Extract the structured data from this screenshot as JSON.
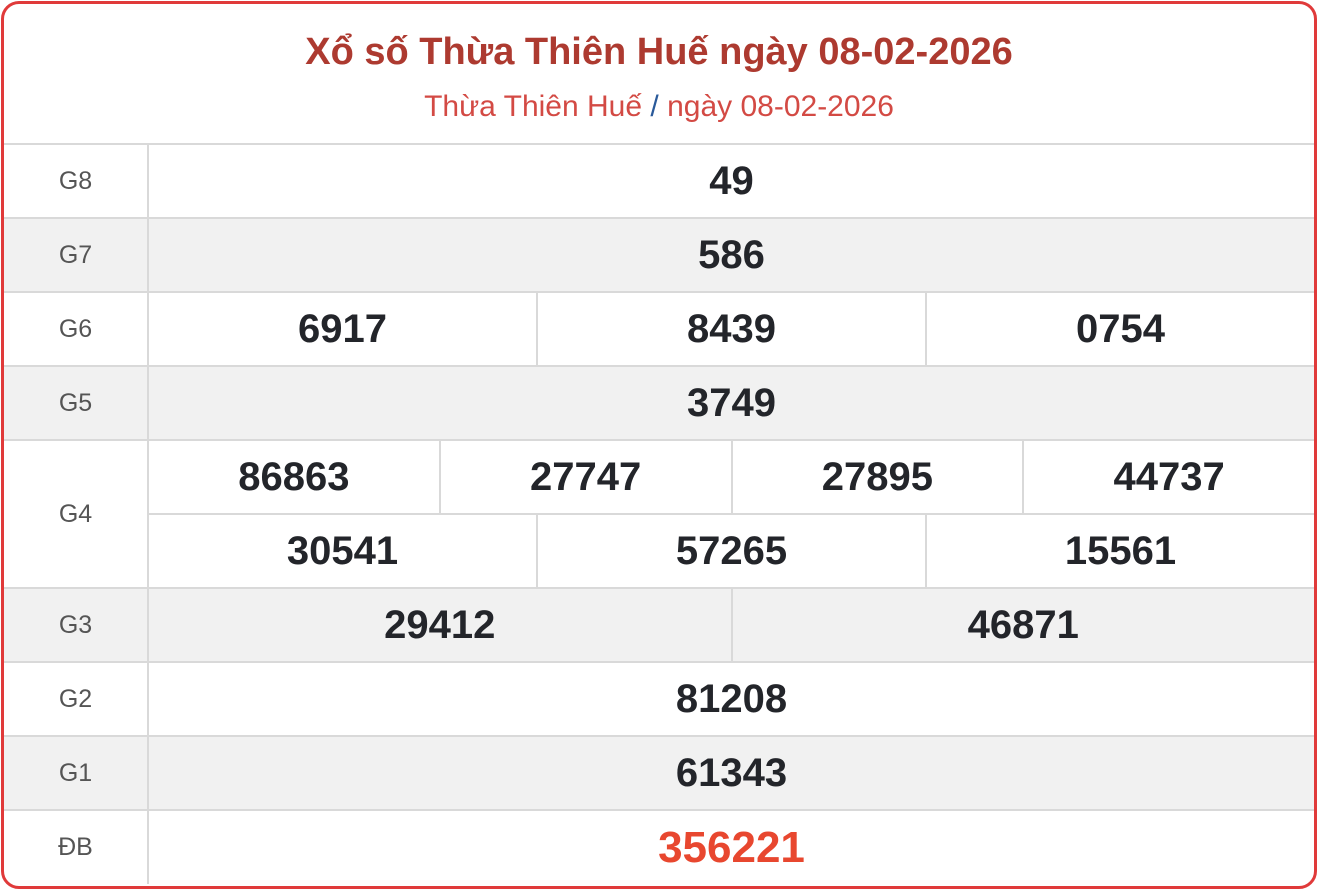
{
  "header": {
    "title": "Xổ số Thừa Thiên Huế ngày 08-02-2026",
    "breadcrumb_province": "Thừa Thiên Huế",
    "breadcrumb_sep": "/",
    "breadcrumb_date": "ngày 08-02-2026"
  },
  "prizes": [
    {
      "label": "G8",
      "lines": [
        [
          "49"
        ]
      ]
    },
    {
      "label": "G7",
      "lines": [
        [
          "586"
        ]
      ]
    },
    {
      "label": "G6",
      "lines": [
        [
          "6917",
          "8439",
          "0754"
        ]
      ]
    },
    {
      "label": "G5",
      "lines": [
        [
          "3749"
        ]
      ]
    },
    {
      "label": "G4",
      "lines": [
        [
          "86863",
          "27747",
          "27895",
          "44737"
        ],
        [
          "30541",
          "57265",
          "15561"
        ]
      ]
    },
    {
      "label": "G3",
      "lines": [
        [
          "29412",
          "46871"
        ]
      ]
    },
    {
      "label": "G2",
      "lines": [
        [
          "81208"
        ]
      ]
    },
    {
      "label": "G1",
      "lines": [
        [
          "61343"
        ]
      ]
    },
    {
      "label": "ĐB",
      "lines": [
        [
          "356221"
        ]
      ]
    }
  ],
  "colors": {
    "border": "#e03a3a",
    "title": "#ad3a30",
    "special": "#e8472f",
    "alt_row": "#f1f1f1"
  }
}
